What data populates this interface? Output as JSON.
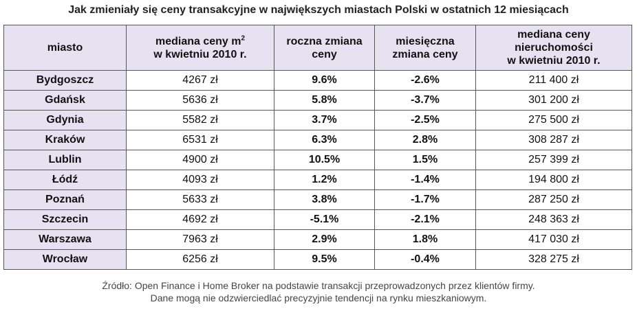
{
  "title": "Jak zmieniały się ceny transakcyjne w największych miastach Polski w ostatnich 12 miesiącach",
  "table": {
    "headers": {
      "city": "miasto",
      "price_m2": "mediana ceny m",
      "price_m2_sup": "2",
      "price_m2_line2": "w kwietniu 2010 r.",
      "annual_line1": "roczna zmiana",
      "annual_line2": "ceny",
      "monthly_line1": "miesięczna",
      "monthly_line2": "zmiana ceny",
      "total_line1": "mediana ceny",
      "total_line2": "nieruchomości",
      "total_line3": "w kwietniu 2010 r."
    },
    "rows": [
      {
        "city": "Bydgoszcz",
        "price": "4267 zł",
        "annual": "9.6%",
        "monthly": "-2.6%",
        "total": "211 400 zł"
      },
      {
        "city": "Gdańsk",
        "price": "5636 zł",
        "annual": "5.8%",
        "monthly": "-3.7%",
        "total": "301 200 zł"
      },
      {
        "city": "Gdynia",
        "price": "5582 zł",
        "annual": "3.7%",
        "monthly": "-2.5%",
        "total": "275 500 zł"
      },
      {
        "city": "Kraków",
        "price": "6531 zł",
        "annual": "6.3%",
        "monthly": "2.8%",
        "total": "308 287 zł"
      },
      {
        "city": "Lublin",
        "price": "4900 zł",
        "annual": "10.5%",
        "monthly": "1.5%",
        "total": "257 399 zł"
      },
      {
        "city": "Łódź",
        "price": "4093 zł",
        "annual": "1.2%",
        "monthly": "-1.4%",
        "total": "194 800 zł"
      },
      {
        "city": "Poznań",
        "price": "5633 zł",
        "annual": "3.8%",
        "monthly": "-1.7%",
        "total": "287 250 zł"
      },
      {
        "city": "Szczecin",
        "price": "4692 zł",
        "annual": "-5.1%",
        "monthly": "-2.1%",
        "total": "248 363 zł"
      },
      {
        "city": "Warszawa",
        "price": "7963 zł",
        "annual": "2.9%",
        "monthly": "1.8%",
        "total": "417 030 zł"
      },
      {
        "city": "Wrocław",
        "price": "6256 zł",
        "annual": "9.5%",
        "monthly": "-0.4%",
        "total": "328 275 zł"
      }
    ]
  },
  "source": {
    "line1": "Źródło: Open Finance i Home Broker na podstawie transakcji przeprowadzonych przez klientów firmy.",
    "line2": "Dane mogą nie odzwierciedlać precyzyjnie tendencji na rynku mieszkaniowym."
  },
  "colors": {
    "header_bg": "#e7e2f2",
    "border": "#555555"
  }
}
